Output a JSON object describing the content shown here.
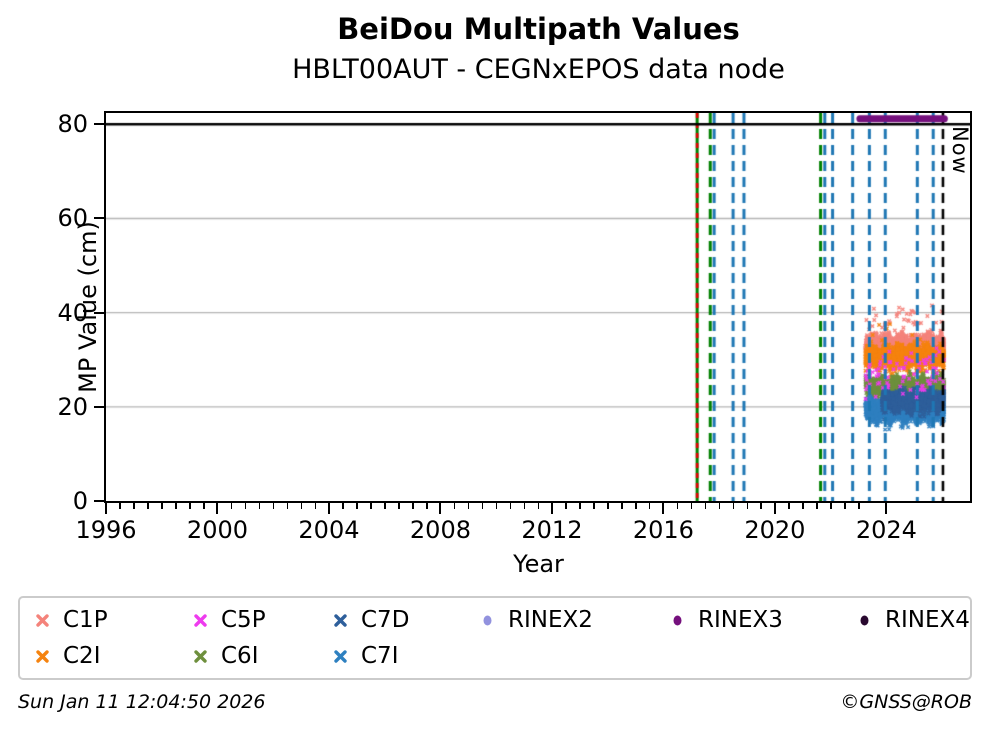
{
  "header": {
    "title": "BeiDou Multipath Values",
    "subtitle": "HBLT00AUT - CEGNxEPOS data node"
  },
  "footer": {
    "timestamp": "Sun Jan 11 12:04:50 2026",
    "copyright": "©GNSS@ROB"
  },
  "chart_data": {
    "type": "scatter",
    "title": "BeiDou Multipath Values",
    "subtitle": "HBLT00AUT - CEGNxEPOS data node",
    "xlabel": "Year",
    "ylabel": "MP Value (cm)",
    "xlim": [
      1996,
      2027
    ],
    "ylim": [
      0,
      82.4
    ],
    "xticks": [
      1996,
      2000,
      2004,
      2008,
      2012,
      2016,
      2020,
      2024
    ],
    "x_minor_step": 0.5,
    "yticks": [
      0,
      20,
      40,
      60,
      80
    ],
    "grid": {
      "color": "#b4b4b4",
      "y_gridlines": [
        20,
        40,
        60
      ]
    },
    "hline": {
      "y": 80,
      "color": "#000000",
      "width": 2.6
    },
    "rinex3_segment": {
      "name": "RINEX3",
      "y": 81.2,
      "x_start": 2023.05,
      "x_end": 2026.08,
      "color": "#75107d",
      "width": 7
    },
    "now_line": {
      "x": 2026.03,
      "label": "Now",
      "color": "#000000",
      "style": "dashed",
      "width": 2.6
    },
    "event_lines": [
      {
        "x": 2017.21,
        "color": "#008000",
        "style": "solid",
        "width": 3.0
      },
      {
        "x": 2017.21,
        "color": "#e00000",
        "style": "dashed",
        "width": 2.6,
        "dash": [
          5,
          5
        ]
      },
      {
        "x": 2017.68,
        "color": "#008000",
        "style": "dashed",
        "width": 3.0
      },
      {
        "x": 2017.82,
        "color": "#1f77b4",
        "style": "dashed",
        "width": 3.0
      },
      {
        "x": 2018.5,
        "color": "#1f77b4",
        "style": "dashed",
        "width": 3.0
      },
      {
        "x": 2018.89,
        "color": "#1f77b4",
        "style": "dashed",
        "width": 3.0
      },
      {
        "x": 2021.64,
        "color": "#008000",
        "style": "dashed",
        "width": 3.0
      },
      {
        "x": 2021.79,
        "color": "#1f77b4",
        "style": "dashed",
        "width": 3.0
      },
      {
        "x": 2022.07,
        "color": "#1f77b4",
        "style": "dashed",
        "width": 3.0
      },
      {
        "x": 2022.79,
        "color": "#1f77b4",
        "style": "dashed",
        "width": 3.0
      },
      {
        "x": 2023.39,
        "color": "#1f77b4",
        "style": "dashed",
        "width": 3.0
      },
      {
        "x": 2023.96,
        "color": "#1f77b4",
        "style": "dashed",
        "width": 3.0
      },
      {
        "x": 2025.11,
        "color": "#1f77b4",
        "style": "dashed",
        "width": 3.0
      },
      {
        "x": 2025.68,
        "color": "#1f77b4",
        "style": "dashed",
        "width": 3.0
      }
    ],
    "series": [
      {
        "name": "C1P",
        "color": "#f4837b",
        "marker": "x",
        "x_start": 2023.25,
        "x_end": 2026.07,
        "y_mean": 33.3,
        "y_spread": 2.1,
        "outliers_up": 0.025,
        "points": 2100
      },
      {
        "name": "C2I",
        "color": "#f5830f",
        "marker": "x",
        "x_start": 2023.25,
        "x_end": 2026.07,
        "y_mean": 30.6,
        "y_spread": 2.4,
        "outliers_up": 0.004,
        "points": 2500
      },
      {
        "name": "C6I",
        "color": "#6e8f3d",
        "marker": "x",
        "x_start": 2023.25,
        "x_end": 2026.07,
        "y_mean": 24.3,
        "y_spread": 2.2,
        "outliers_up": 0,
        "points": 2100
      },
      {
        "name": "C7I",
        "color": "#2e80c0",
        "marker": "x",
        "x_start": 2023.25,
        "x_end": 2026.07,
        "y_mean": 19.4,
        "y_spread": 2.6,
        "outliers_up": 0,
        "points": 2500
      },
      {
        "name": "C7D",
        "color": "#2e5f9b",
        "marker": "x",
        "x_start": 2023.85,
        "x_end": 2026.07,
        "y_mean": 21.4,
        "y_spread": 2.3,
        "outliers_up": 0,
        "points": 1400
      },
      {
        "name": "C5P",
        "color": "#ee3bee",
        "marker": "x",
        "x_start": 2023.25,
        "x_end": 2026.07,
        "y_mean": 27.0,
        "y_spread": 7.0,
        "outliers_up": 0,
        "points": 90
      }
    ],
    "legend": {
      "entries": [
        {
          "label": "C1P",
          "color": "#f4837b",
          "marker": "x",
          "col": 1,
          "row": 1
        },
        {
          "label": "C2I",
          "color": "#f5830f",
          "marker": "x",
          "col": 1,
          "row": 2
        },
        {
          "label": "C5P",
          "color": "#ee3bee",
          "marker": "x",
          "col": 2,
          "row": 1
        },
        {
          "label": "C6I",
          "color": "#6e8f3d",
          "marker": "x",
          "col": 2,
          "row": 2
        },
        {
          "label": "C7D",
          "color": "#2e5f9b",
          "marker": "x",
          "col": 3,
          "row": 1
        },
        {
          "label": "C7I",
          "color": "#2e80c0",
          "marker": "x",
          "col": 3,
          "row": 2
        },
        {
          "label": "RINEX2",
          "color": "#9292de",
          "marker": "circle",
          "col": 4,
          "row": 1
        },
        {
          "label": "RINEX3",
          "color": "#75107d",
          "marker": "circle",
          "col": 5,
          "row": 1
        },
        {
          "label": "RINEX4",
          "color": "#29082f",
          "marker": "circle",
          "col": 6,
          "row": 1
        }
      ]
    }
  }
}
